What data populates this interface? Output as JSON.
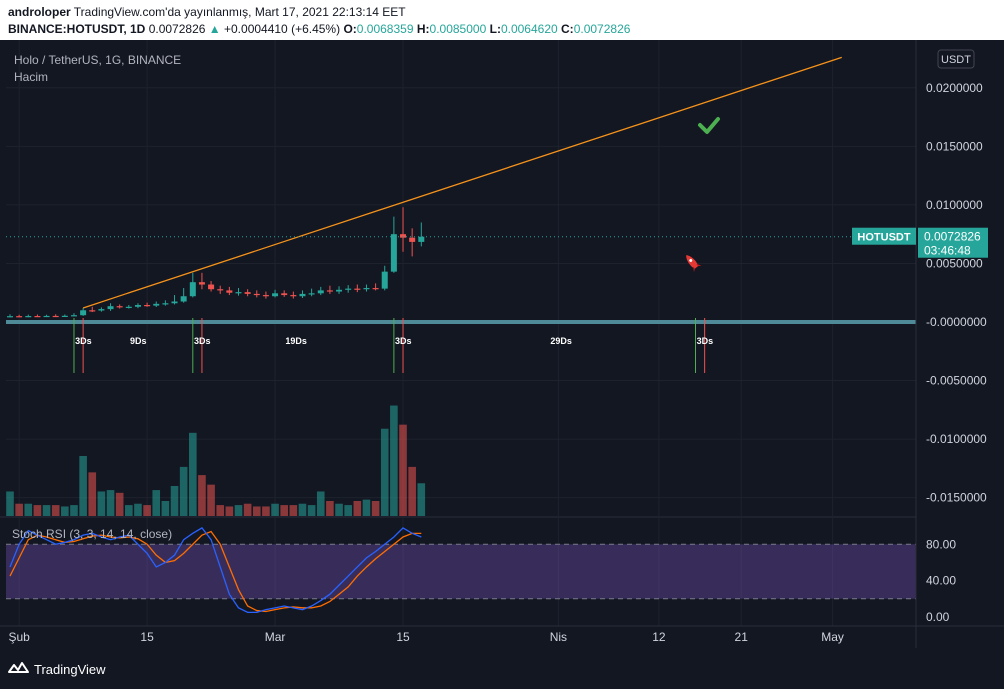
{
  "header": {
    "author": "androloper",
    "published_text": "TradingView.com'da yayınlanmış, Mart 17, 2021 22:13:14 EET",
    "symbol_full": "BINANCE:HOTUSDT, 1D",
    "last_price": "0.0072826",
    "change_arrow": "▲",
    "change": "+0.0004410 (+6.45%)",
    "o_label": "O:",
    "o_value": "0.0068359",
    "h_label": "H:",
    "h_value": "0.0085000",
    "l_label": "L:",
    "l_value": "0.0064620",
    "c_label": "C:",
    "c_value": "0.0072826"
  },
  "legend": {
    "symbol_title": "Holo / TetherUS, 1G, BINANCE",
    "volume_label": "Hacim",
    "stoch_label": "Stoch RSI (3, 3, 14, 14, close)"
  },
  "price_axis": {
    "currency": "USDT",
    "ticks": [
      "0.0200000",
      "0.0150000",
      "0.0100000",
      "0.0050000",
      "-0.0000000",
      "-0.0050000",
      "-0.0100000",
      "-0.0150000"
    ],
    "tick_values": [
      0.02,
      0.015,
      0.01,
      0.005,
      0,
      -0.005,
      -0.01,
      -0.015
    ],
    "last_label": "HOTUSDT",
    "last_value": "0.0072826",
    "countdown": "03:46:48"
  },
  "stoch_axis": {
    "ticks": [
      "80.00",
      "40.00",
      "0.00"
    ],
    "tick_values": [
      80,
      40,
      0
    ],
    "upper_band": 80,
    "lower_band": 20
  },
  "time_axis": {
    "labels": [
      "Şub",
      "15",
      "Mar",
      "15",
      "Nis",
      "12",
      "21",
      "May"
    ]
  },
  "cycle_labels": [
    "3Ds",
    "9Ds",
    "3Ds",
    "19Ds",
    "3Ds",
    "29Ds",
    "3Ds"
  ],
  "footer": {
    "brand": "TradingView"
  },
  "colors": {
    "up": "#26a69a",
    "down": "#ef5350",
    "trendline": "#f7931a",
    "stoch_k": "#2962ff",
    "stoch_d": "#ff6d00",
    "stoch_bg": "#7e57c2",
    "support_line": "#4f8a99"
  },
  "chart_data": {
    "type": "candlestick",
    "title": "Holo / TetherUS, 1G, BINANCE",
    "interval": "1D",
    "dates": [
      "2021-01-31",
      "2021-02-01",
      "2021-02-02",
      "2021-02-03",
      "2021-02-04",
      "2021-02-05",
      "2021-02-06",
      "2021-02-07",
      "2021-02-08",
      "2021-02-09",
      "2021-02-10",
      "2021-02-11",
      "2021-02-12",
      "2021-02-13",
      "2021-02-14",
      "2021-02-15",
      "2021-02-16",
      "2021-02-17",
      "2021-02-18",
      "2021-02-19",
      "2021-02-20",
      "2021-02-21",
      "2021-02-22",
      "2021-02-23",
      "2021-02-24",
      "2021-02-25",
      "2021-02-26",
      "2021-02-27",
      "2021-02-28",
      "2021-03-01",
      "2021-03-02",
      "2021-03-03",
      "2021-03-04",
      "2021-03-05",
      "2021-03-06",
      "2021-03-07",
      "2021-03-08",
      "2021-03-09",
      "2021-03-10",
      "2021-03-11",
      "2021-03-12",
      "2021-03-13",
      "2021-03-14",
      "2021-03-15",
      "2021-03-16",
      "2021-03-17"
    ],
    "open": [
      0.00048,
      0.0005,
      0.00049,
      0.00051,
      0.0005,
      0.00052,
      0.00051,
      0.00053,
      0.00058,
      0.001,
      0.00098,
      0.0011,
      0.00135,
      0.00128,
      0.0013,
      0.00145,
      0.0014,
      0.00155,
      0.0016,
      0.00175,
      0.0022,
      0.0034,
      0.0032,
      0.0028,
      0.0027,
      0.0025,
      0.00255,
      0.0024,
      0.0023,
      0.0022,
      0.00245,
      0.0023,
      0.0022,
      0.0024,
      0.00245,
      0.0027,
      0.0026,
      0.00275,
      0.00285,
      0.0028,
      0.0029,
      0.00285,
      0.0043,
      0.0075,
      0.0072,
      0.00684
    ],
    "high": [
      0.00065,
      0.00062,
      0.00063,
      0.00064,
      0.00062,
      0.00066,
      0.00064,
      0.00075,
      0.0012,
      0.0013,
      0.00125,
      0.0016,
      0.0015,
      0.00145,
      0.0016,
      0.00165,
      0.00175,
      0.00185,
      0.0023,
      0.0029,
      0.0042,
      0.0042,
      0.0035,
      0.0031,
      0.003,
      0.0029,
      0.0028,
      0.0027,
      0.0026,
      0.00275,
      0.0027,
      0.0026,
      0.0027,
      0.00285,
      0.003,
      0.0031,
      0.00305,
      0.00315,
      0.0032,
      0.0032,
      0.0033,
      0.0048,
      0.009,
      0.0098,
      0.008,
      0.0085
    ],
    "low": [
      0.0004,
      0.00042,
      0.00041,
      0.00043,
      0.00044,
      0.00045,
      0.00044,
      0.00048,
      0.00052,
      0.00085,
      0.00088,
      0.00095,
      0.00115,
      0.00115,
      0.00118,
      0.0013,
      0.00128,
      0.0014,
      0.0015,
      0.00165,
      0.0021,
      0.0028,
      0.0026,
      0.0024,
      0.0023,
      0.00225,
      0.0022,
      0.0021,
      0.002,
      0.0021,
      0.00215,
      0.002,
      0.00205,
      0.0022,
      0.0023,
      0.0024,
      0.0024,
      0.0025,
      0.00255,
      0.0026,
      0.0027,
      0.0027,
      0.0042,
      0.006,
      0.0056,
      0.00646
    ],
    "close": [
      0.0005,
      0.00049,
      0.00051,
      0.0005,
      0.00052,
      0.00051,
      0.00053,
      0.00058,
      0.001,
      0.00098,
      0.0011,
      0.00135,
      0.00128,
      0.0013,
      0.00145,
      0.0014,
      0.00155,
      0.0016,
      0.00175,
      0.0022,
      0.0034,
      0.0032,
      0.0028,
      0.0027,
      0.0025,
      0.00255,
      0.0024,
      0.0023,
      0.0022,
      0.00245,
      0.0023,
      0.0022,
      0.0024,
      0.00245,
      0.0027,
      0.0026,
      0.00275,
      0.00285,
      0.0028,
      0.0029,
      0.00285,
      0.0043,
      0.0075,
      0.0072,
      0.00684,
      0.00728
    ],
    "volume": [
      0.9,
      0.45,
      0.45,
      0.4,
      0.4,
      0.4,
      0.35,
      0.4,
      2.2,
      1.6,
      0.9,
      0.95,
      0.85,
      0.4,
      0.45,
      0.4,
      0.95,
      0.55,
      1.1,
      1.8,
      3.05,
      1.5,
      1.15,
      0.4,
      0.35,
      0.4,
      0.45,
      0.35,
      0.35,
      0.45,
      0.4,
      0.4,
      0.45,
      0.4,
      0.9,
      0.55,
      0.45,
      0.4,
      0.55,
      0.6,
      0.55,
      3.2,
      4.05,
      3.35,
      1.8,
      1.2
    ],
    "stoch_k": [
      55,
      80,
      95,
      90,
      85,
      80,
      82,
      85,
      90,
      92,
      88,
      85,
      88,
      90,
      80,
      70,
      55,
      60,
      68,
      85,
      92,
      98,
      85,
      55,
      25,
      10,
      5,
      5,
      8,
      10,
      12,
      10,
      8,
      12,
      18,
      25,
      35,
      45,
      55,
      65,
      72,
      80,
      88,
      98,
      92,
      88
    ],
    "stoch_d": [
      45,
      65,
      85,
      90,
      88,
      85,
      82,
      83,
      86,
      89,
      90,
      88,
      87,
      88,
      86,
      80,
      68,
      60,
      62,
      70,
      80,
      90,
      94,
      80,
      55,
      30,
      12,
      7,
      6,
      8,
      10,
      11,
      10,
      10,
      12,
      17,
      25,
      33,
      45,
      55,
      64,
      72,
      80,
      88,
      92,
      92
    ],
    "trendline": {
      "start": [
        "2021-02-08",
        0.0012
      ],
      "end": [
        "2021-05-02",
        0.0226
      ]
    },
    "support_line": 0.0,
    "cycle_lines": [
      {
        "date": "2021-02-07",
        "color": "up"
      },
      {
        "date": "2021-02-08",
        "color": "down"
      },
      {
        "date": "2021-02-20",
        "color": "up"
      },
      {
        "date": "2021-02-21",
        "color": "down"
      },
      {
        "date": "2021-03-14",
        "color": "up"
      },
      {
        "date": "2021-03-15",
        "color": "down"
      },
      {
        "date": "2021-04-16",
        "color": "up"
      },
      {
        "date": "2021-04-17",
        "color": "down"
      }
    ],
    "volume_scale_max": 4.4,
    "stoch_range": [
      -10,
      110
    ]
  }
}
